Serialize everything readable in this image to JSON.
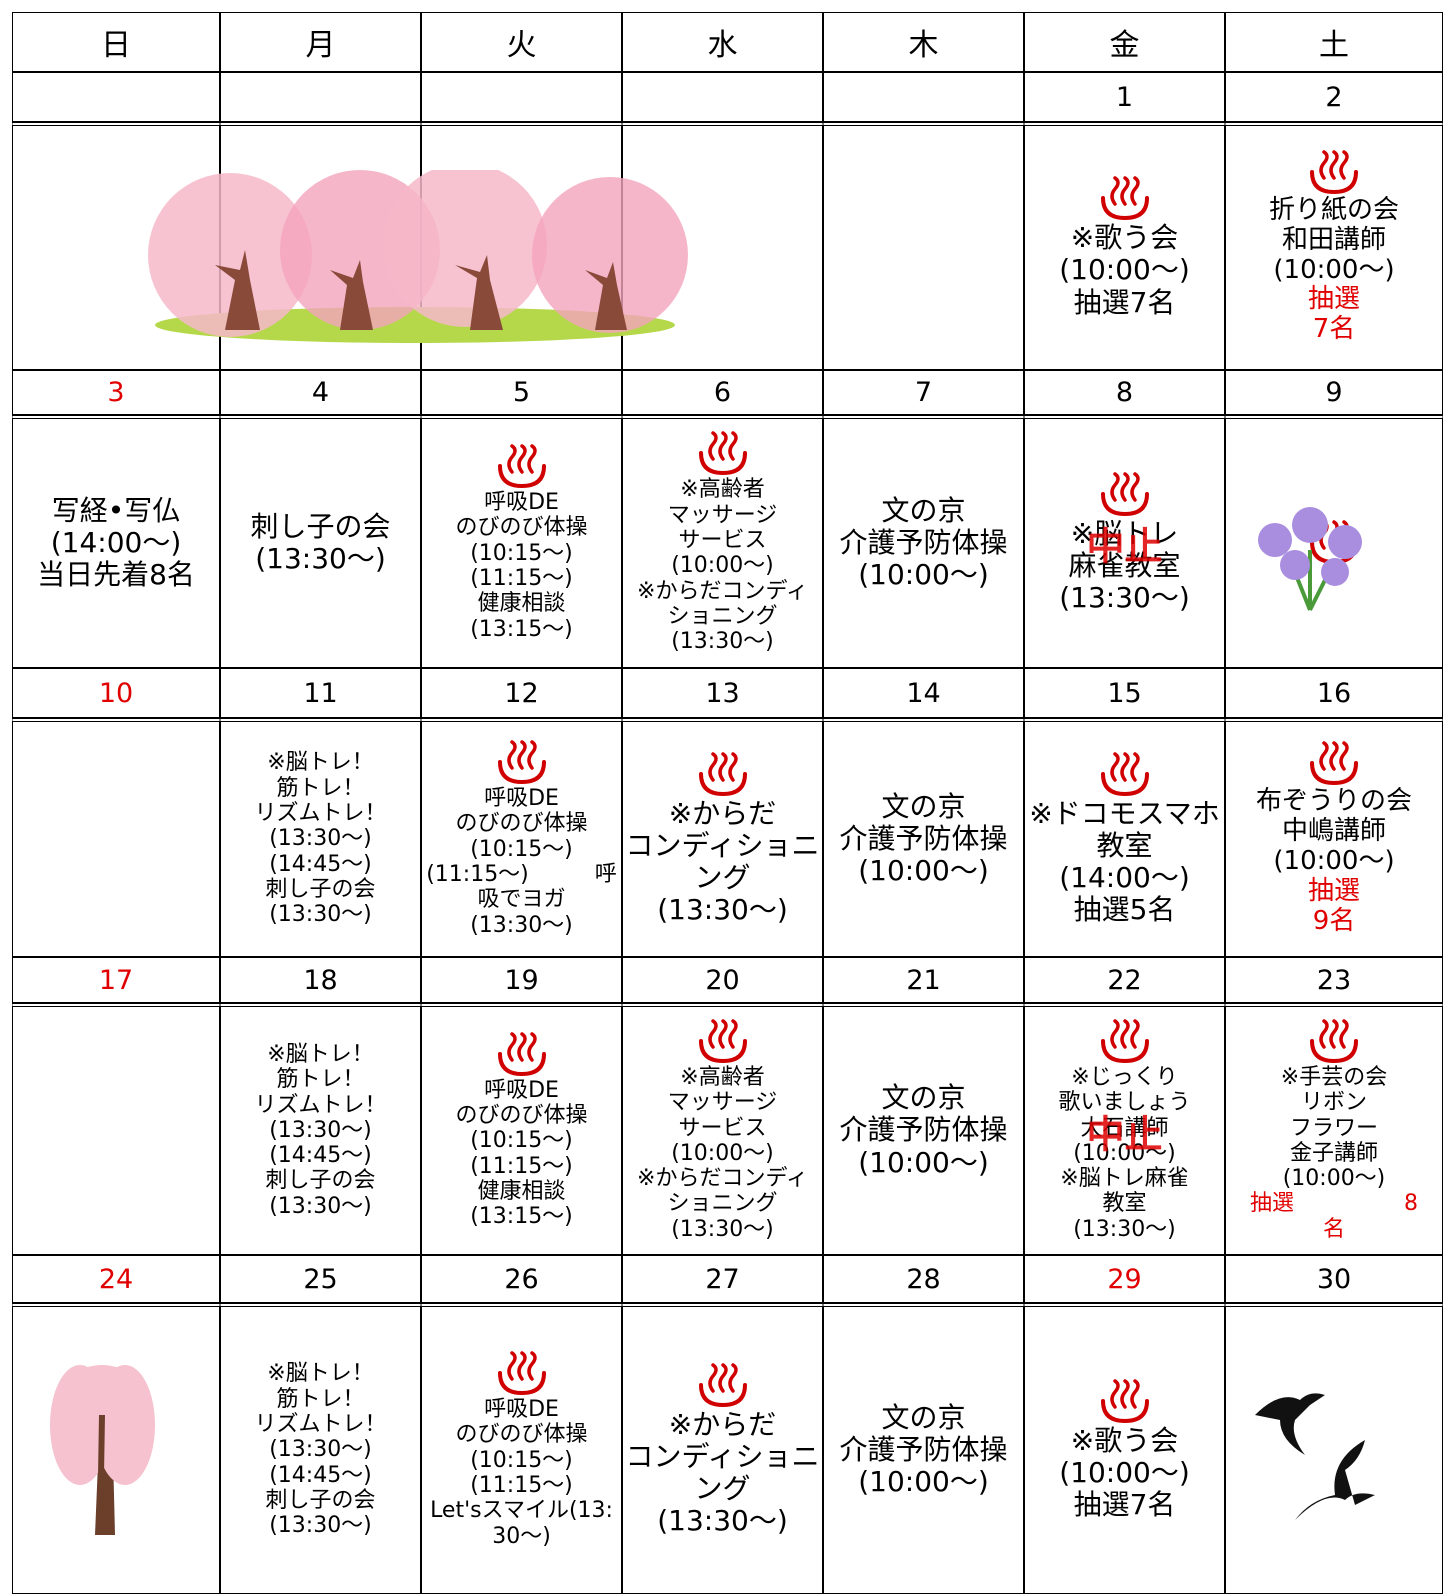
{
  "weekdays": [
    "日",
    "月",
    "火",
    "水",
    "木",
    "金",
    "土"
  ],
  "weeks": [
    {
      "days": [
        {
          "date": null
        },
        {
          "date": null
        },
        {
          "date": null
        },
        {
          "date": null
        },
        {
          "date": null
        },
        {
          "date": 1,
          "spa": true,
          "lines": [
            {
              "text": "※歌う会"
            },
            {
              "text": "(10:00～)"
            },
            {
              "text": "抽選7名"
            }
          ]
        },
        {
          "date": 2,
          "spa": true,
          "lines": [
            {
              "text": "折り紙の会"
            },
            {
              "text": "和田講師"
            },
            {
              "text": "(10:00～)"
            },
            {
              "text": "抽選",
              "red": true
            },
            {
              "text": "7名",
              "red": true
            }
          ]
        }
      ]
    },
    {
      "days": [
        {
          "date": 3,
          "holiday": true,
          "lines": [
            {
              "text": "写経•写仏"
            },
            {
              "text": "(14:00～)"
            },
            {
              "text": "当日先着8名"
            }
          ]
        },
        {
          "date": 4,
          "lines": [
            {
              "text": "刺し子の会"
            },
            {
              "text": "(13:30～)"
            }
          ]
        },
        {
          "date": 5,
          "spa": true,
          "lines": [
            {
              "text": "呼吸DE"
            },
            {
              "text": "のびのび体操"
            },
            {
              "text": "(10:15～)"
            },
            {
              "text": "(11:15～)"
            },
            {
              "text": "健康相談"
            },
            {
              "text": "(13:15～)"
            }
          ]
        },
        {
          "date": 6,
          "spa": true,
          "lines": [
            {
              "text": "※高齢者"
            },
            {
              "text": "マッサージ"
            },
            {
              "text": "サービス"
            },
            {
              "text": "(10:00～)"
            },
            {
              "text": "※からだコンディ"
            },
            {
              "text": "ショニング"
            },
            {
              "text": "(13:30～)"
            }
          ]
        },
        {
          "date": 7,
          "lines": [
            {
              "text": "文の京"
            },
            {
              "text": "介護予防体操"
            },
            {
              "text": "(10:00～)"
            }
          ]
        },
        {
          "date": 8,
          "spa": true,
          "stamp": "中止",
          "lines": [
            {
              "text": "※脳トレ"
            },
            {
              "text": "麻雀教室"
            },
            {
              "text": "(13:30～)"
            }
          ]
        },
        {
          "date": 9,
          "spa": true
        }
      ]
    },
    {
      "days": [
        {
          "date": 10,
          "holiday": true
        },
        {
          "date": 11,
          "lines": [
            {
              "text": "※脳トレ！"
            },
            {
              "text": "筋トレ！"
            },
            {
              "text": "リズムトレ！"
            },
            {
              "text": "(13:30～)"
            },
            {
              "text": "(14:45～)"
            },
            {
              "text": "刺し子の会"
            },
            {
              "text": "(13:30～)"
            }
          ]
        },
        {
          "date": 12,
          "spa": true,
          "lines": [
            {
              "text": "呼吸DE"
            },
            {
              "text": "のびのび体操"
            },
            {
              "text": "(10:15～)"
            },
            {
              "text": "(11:15～)　　　呼"
            },
            {
              "text": "吸でヨガ"
            },
            {
              "text": "(13:30～)"
            }
          ]
        },
        {
          "date": 13,
          "spa": true,
          "lines": [
            {
              "text": "※からだ"
            },
            {
              "text": "コンディショニ"
            },
            {
              "text": "ング"
            },
            {
              "text": "(13:30～)"
            }
          ]
        },
        {
          "date": 14,
          "lines": [
            {
              "text": "文の京"
            },
            {
              "text": "介護予防体操"
            },
            {
              "text": "(10:00～)"
            }
          ]
        },
        {
          "date": 15,
          "spa": true,
          "lines": [
            {
              "text": "※ドコモスマホ"
            },
            {
              "text": "教室"
            },
            {
              "text": "(14:00～)"
            },
            {
              "text": "抽選5名"
            }
          ]
        },
        {
          "date": 16,
          "spa": true,
          "lines": [
            {
              "text": "布ぞうりの会"
            },
            {
              "text": "中嶋講師"
            },
            {
              "text": "(10:00～)"
            },
            {
              "text": "抽選",
              "red": true
            },
            {
              "text": "9名",
              "red": true
            }
          ]
        }
      ]
    },
    {
      "days": [
        {
          "date": 17,
          "holiday": true
        },
        {
          "date": 18,
          "lines": [
            {
              "text": "※脳トレ！"
            },
            {
              "text": "筋トレ！"
            },
            {
              "text": "リズムトレ！"
            },
            {
              "text": "(13:30～)"
            },
            {
              "text": "(14:45～)"
            },
            {
              "text": "刺し子の会"
            },
            {
              "text": "(13:30～)"
            }
          ]
        },
        {
          "date": 19,
          "spa": true,
          "lines": [
            {
              "text": "呼吸DE"
            },
            {
              "text": "のびのび体操"
            },
            {
              "text": "(10:15～)"
            },
            {
              "text": "(11:15～)"
            },
            {
              "text": "健康相談"
            },
            {
              "text": "(13:15～)"
            }
          ]
        },
        {
          "date": 20,
          "spa": true,
          "lines": [
            {
              "text": "※高齢者"
            },
            {
              "text": "マッサージ"
            },
            {
              "text": "サービス"
            },
            {
              "text": "(10:00～)"
            },
            {
              "text": "※からだコンディ"
            },
            {
              "text": "ショニング"
            },
            {
              "text": "(13:30～)"
            }
          ]
        },
        {
          "date": 21,
          "lines": [
            {
              "text": "文の京"
            },
            {
              "text": "介護予防体操"
            },
            {
              "text": "(10:00～)"
            }
          ]
        },
        {
          "date": 22,
          "spa": true,
          "stamp": "中止",
          "lines": [
            {
              "text": "※じっくり"
            },
            {
              "text": "歌いましょう"
            },
            {
              "text": "大石講師"
            },
            {
              "text": "(10:00～)"
            },
            {
              "text": "※脳トレ麻雀"
            },
            {
              "text": "教室"
            },
            {
              "text": "(13:30～)"
            }
          ]
        },
        {
          "date": 23,
          "spa": true,
          "lines": [
            {
              "text": "※手芸の会"
            },
            {
              "text": "リボン"
            },
            {
              "text": "フラワー"
            },
            {
              "text": "金子講師"
            },
            {
              "text": "(10:00～)"
            },
            {
              "text": "抽選　　　　　8",
              "red": true
            },
            {
              "text": "名",
              "red": true
            }
          ]
        }
      ]
    },
    {
      "days": [
        {
          "date": 24,
          "holiday": true
        },
        {
          "date": 25,
          "lines": [
            {
              "text": "※脳トレ！"
            },
            {
              "text": "筋トレ！"
            },
            {
              "text": "リズムトレ！"
            },
            {
              "text": "(13:30～)"
            },
            {
              "text": "(14:45～)"
            },
            {
              "text": "刺し子の会"
            },
            {
              "text": "(13:30～)"
            }
          ]
        },
        {
          "date": 26,
          "spa": true,
          "lines": [
            {
              "text": "呼吸DE"
            },
            {
              "text": "のびのび体操"
            },
            {
              "text": "(10:15～)"
            },
            {
              "text": "(11:15～)"
            },
            {
              "text": "Let'sスマイル(13:"
            },
            {
              "text": "30～)"
            }
          ]
        },
        {
          "date": 27,
          "spa": true,
          "lines": [
            {
              "text": "※からだ"
            },
            {
              "text": "コンディショニ"
            },
            {
              "text": "ング"
            },
            {
              "text": "(13:30～)"
            }
          ]
        },
        {
          "date": 28,
          "lines": [
            {
              "text": "文の京"
            },
            {
              "text": "介護予防体操"
            },
            {
              "text": "(10:00～)"
            }
          ]
        },
        {
          "date": 29,
          "holiday": true,
          "spa": true,
          "lines": [
            {
              "text": "※歌う会"
            },
            {
              "text": "(10:00～)"
            },
            {
              "text": "抽選7名"
            }
          ]
        },
        {
          "date": 30
        }
      ]
    }
  ]
}
